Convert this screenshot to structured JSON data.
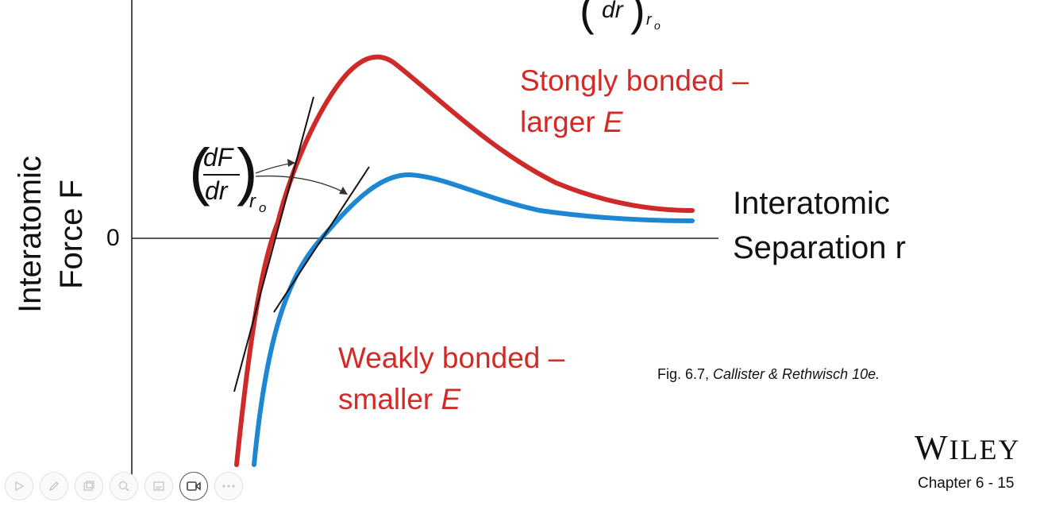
{
  "diagram": {
    "y_axis_label_line1": "Interatomic",
    "y_axis_label_line2": "Force F",
    "zero_label": "0",
    "x_axis_label_line1": "Interatomic",
    "x_axis_label_line2": "Separation r",
    "slope_label_num": "dF",
    "slope_label_den": "dr",
    "slope_label_sub": "r",
    "slope_label_subsub": "o",
    "top_fragment_den": "dr",
    "top_fragment_sub": "r",
    "top_fragment_subsub": "o",
    "strong_label_line1": "Stongly bonded –",
    "strong_label_line2_text": "larger ",
    "strong_label_line2_var": "E",
    "weak_label_line1": "Weakly bonded –",
    "weak_label_line2_text": "smaller ",
    "weak_label_line2_var": "E",
    "caption_prefix": "Fig. 6.7, ",
    "caption_source": "Callister & Rethwisch 10e."
  },
  "colors": {
    "strong_curve": "#cf2a2a",
    "weak_curve": "#1e87d4",
    "label_red": "#d42a27"
  },
  "footer": {
    "publisher_first": "W",
    "publisher_rest": "ILEY",
    "chapter": "Chapter 6 -  15"
  },
  "toolbar": {
    "buttons": [
      {
        "name": "play-icon"
      },
      {
        "name": "pen-icon"
      },
      {
        "name": "slides-icon"
      },
      {
        "name": "zoom-icon"
      },
      {
        "name": "subtitles-icon"
      },
      {
        "name": "camera-icon"
      },
      {
        "name": "more-icon"
      }
    ]
  }
}
